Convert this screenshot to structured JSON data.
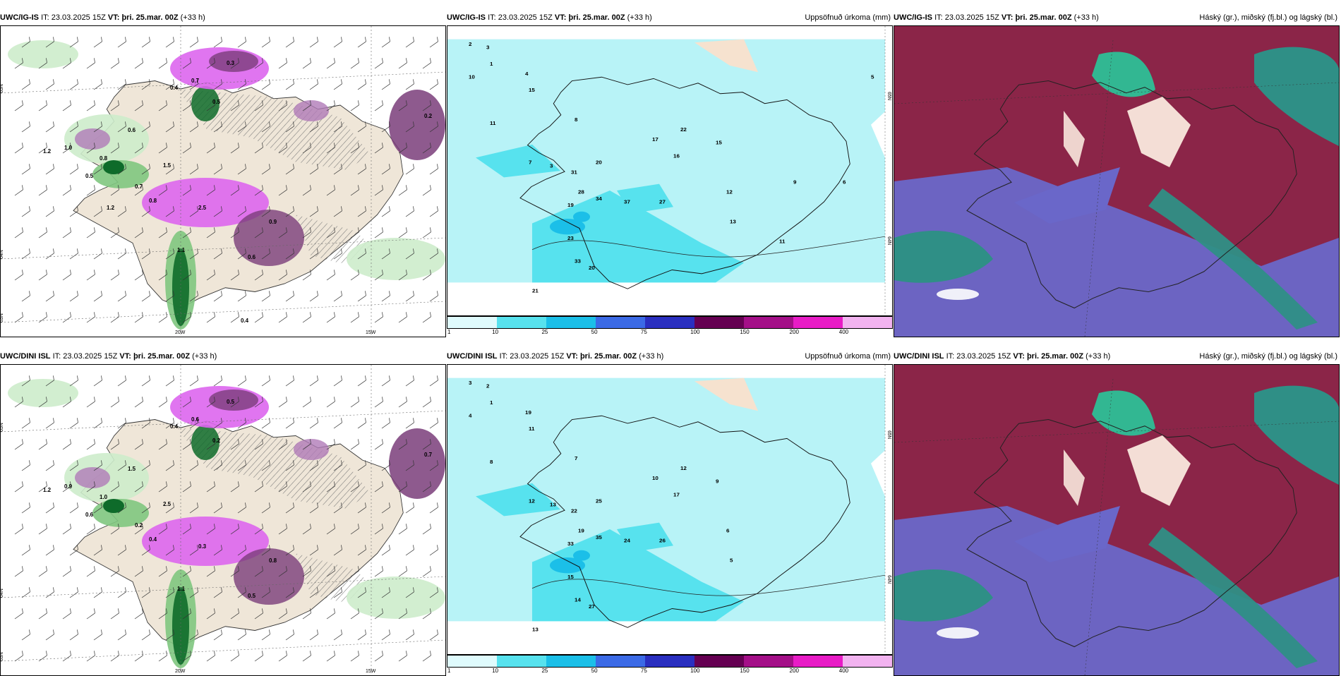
{
  "rows": [
    {
      "panels": [
        {
          "model": "UWC/IG-IS",
          "it_label": "IT:",
          "it_value": "23.03.2025 15Z",
          "vt_label": "VT:",
          "vt_value": "þri. 25.mar. 00Z",
          "lead": "(+33 h)",
          "right_title": "",
          "type": "precip-type-wind",
          "lon_labels": [
            "20W",
            "15W"
          ],
          "lat_labels": [
            "65N",
            "64N",
            "63N"
          ],
          "values": [
            "0.3",
            "0.7",
            "0.4",
            "0.5",
            "0.6",
            "0.8",
            "1.0",
            "1.2",
            "1.5",
            "2.5",
            "0.2",
            "0.9",
            "1.1",
            "0.6",
            "0.5",
            "0.8",
            "0.7",
            "1.2",
            "0.4"
          ]
        },
        {
          "model": "UWC/IG-IS",
          "it_label": "IT:",
          "it_value": "23.03.2025 15Z",
          "vt_label": "VT:",
          "vt_value": "þri. 25.mar. 00Z",
          "lead": "(+33 h)",
          "right_title": "Uppsöfnuð úrkoma (mm)",
          "type": "accumulated-precip",
          "lat_labels": [
            "65N",
            "64N"
          ],
          "values": [
            "2",
            "3",
            "1",
            "10",
            "4",
            "15",
            "11",
            "8",
            "7",
            "3",
            "31",
            "20",
            "28",
            "19",
            "34",
            "37",
            "27",
            "16",
            "23",
            "33",
            "20",
            "21",
            "17",
            "22",
            "15",
            "12",
            "13",
            "11",
            "9",
            "6",
            "5"
          ],
          "legend_ticks": [
            "1",
            "10",
            "25",
            "50",
            "75",
            "100",
            "150",
            "200",
            "400"
          ]
        },
        {
          "model": "UWC/IG-IS",
          "it_label": "IT:",
          "it_value": "23.03.2025 15Z",
          "vt_label": "VT:",
          "vt_value": "þri. 25.mar. 00Z",
          "lead": "(+33 h)",
          "right_title": "Háský (gr.), miðský (fj.bl.) og lágský (bl.)",
          "type": "clouds"
        }
      ]
    },
    {
      "panels": [
        {
          "model": "UWC/DINI ISL",
          "it_label": "IT:",
          "it_value": "23.03.2025 15Z",
          "vt_label": "VT:",
          "vt_value": "þri. 25.mar. 00Z",
          "lead": "(+33 h)",
          "right_title": "",
          "type": "precip-type-wind",
          "lon_labels": [
            "20W",
            "15W"
          ],
          "lat_labels": [
            "65N",
            "64N",
            "63N"
          ],
          "values": [
            "0.5",
            "0.6",
            "0.4",
            "0.2",
            "1.5",
            "1.0",
            "0.9",
            "1.2",
            "2.5",
            "0.3",
            "0.7",
            "0.8",
            "1.1",
            "0.5",
            "0.6",
            "0.4",
            "0.2"
          ]
        },
        {
          "model": "UWC/DINI ISL",
          "it_label": "IT:",
          "it_value": "23.03.2025 15Z",
          "vt_label": "VT:",
          "vt_value": "þri. 25.mar. 00Z",
          "lead": "(+33 h)",
          "right_title": "Uppsöfnuð úrkoma (mm)",
          "type": "accumulated-precip",
          "lat_labels": [
            "65N",
            "64N"
          ],
          "values": [
            "3",
            "2",
            "1",
            "4",
            "19",
            "11",
            "8",
            "7",
            "12",
            "13",
            "22",
            "25",
            "19",
            "33",
            "35",
            "24",
            "26",
            "17",
            "15",
            "14",
            "27",
            "13",
            "10",
            "12",
            "9",
            "6",
            "5"
          ],
          "legend_ticks": [
            "1",
            "10",
            "25",
            "50",
            "75",
            "100",
            "150",
            "200",
            "400"
          ]
        },
        {
          "model": "UWC/DINI ISL",
          "it_label": "IT:",
          "it_value": "23.03.2025 15Z",
          "vt_label": "VT:",
          "vt_value": "þri. 25.mar. 00Z",
          "lead": "(+33 h)",
          "right_title": "Háský (gr.), miðský (fj.bl.) og lágský (bl.)",
          "type": "clouds"
        }
      ]
    }
  ],
  "colors": {
    "land": "#efe6d8",
    "hatch": "#777777",
    "rain_light": "#cdeccb",
    "rain_mid": "#7fc77f",
    "rain_dark": "#0e6b2a",
    "snow_light": "#b07ab8",
    "snow_mid": "#dd66ee",
    "snow_dark": "#7a3d7a",
    "precip_bg": "#b8f3f7",
    "precip_10": "#57e2ee",
    "precip_25": "#1bbfe8",
    "cloud_high": "#8b2548",
    "cloud_mid": "#6a67c9",
    "cloud_low": "#2f8f86",
    "cloud_green": "#28c89a",
    "cloud_white": "#fff3e6"
  },
  "legend_colors": [
    "#dffbfd",
    "#57e2ee",
    "#1bbfe8",
    "#3b6ae6",
    "#2a2fc0",
    "#650052",
    "#a40f88",
    "#e81cc6",
    "#f2b3f0"
  ]
}
